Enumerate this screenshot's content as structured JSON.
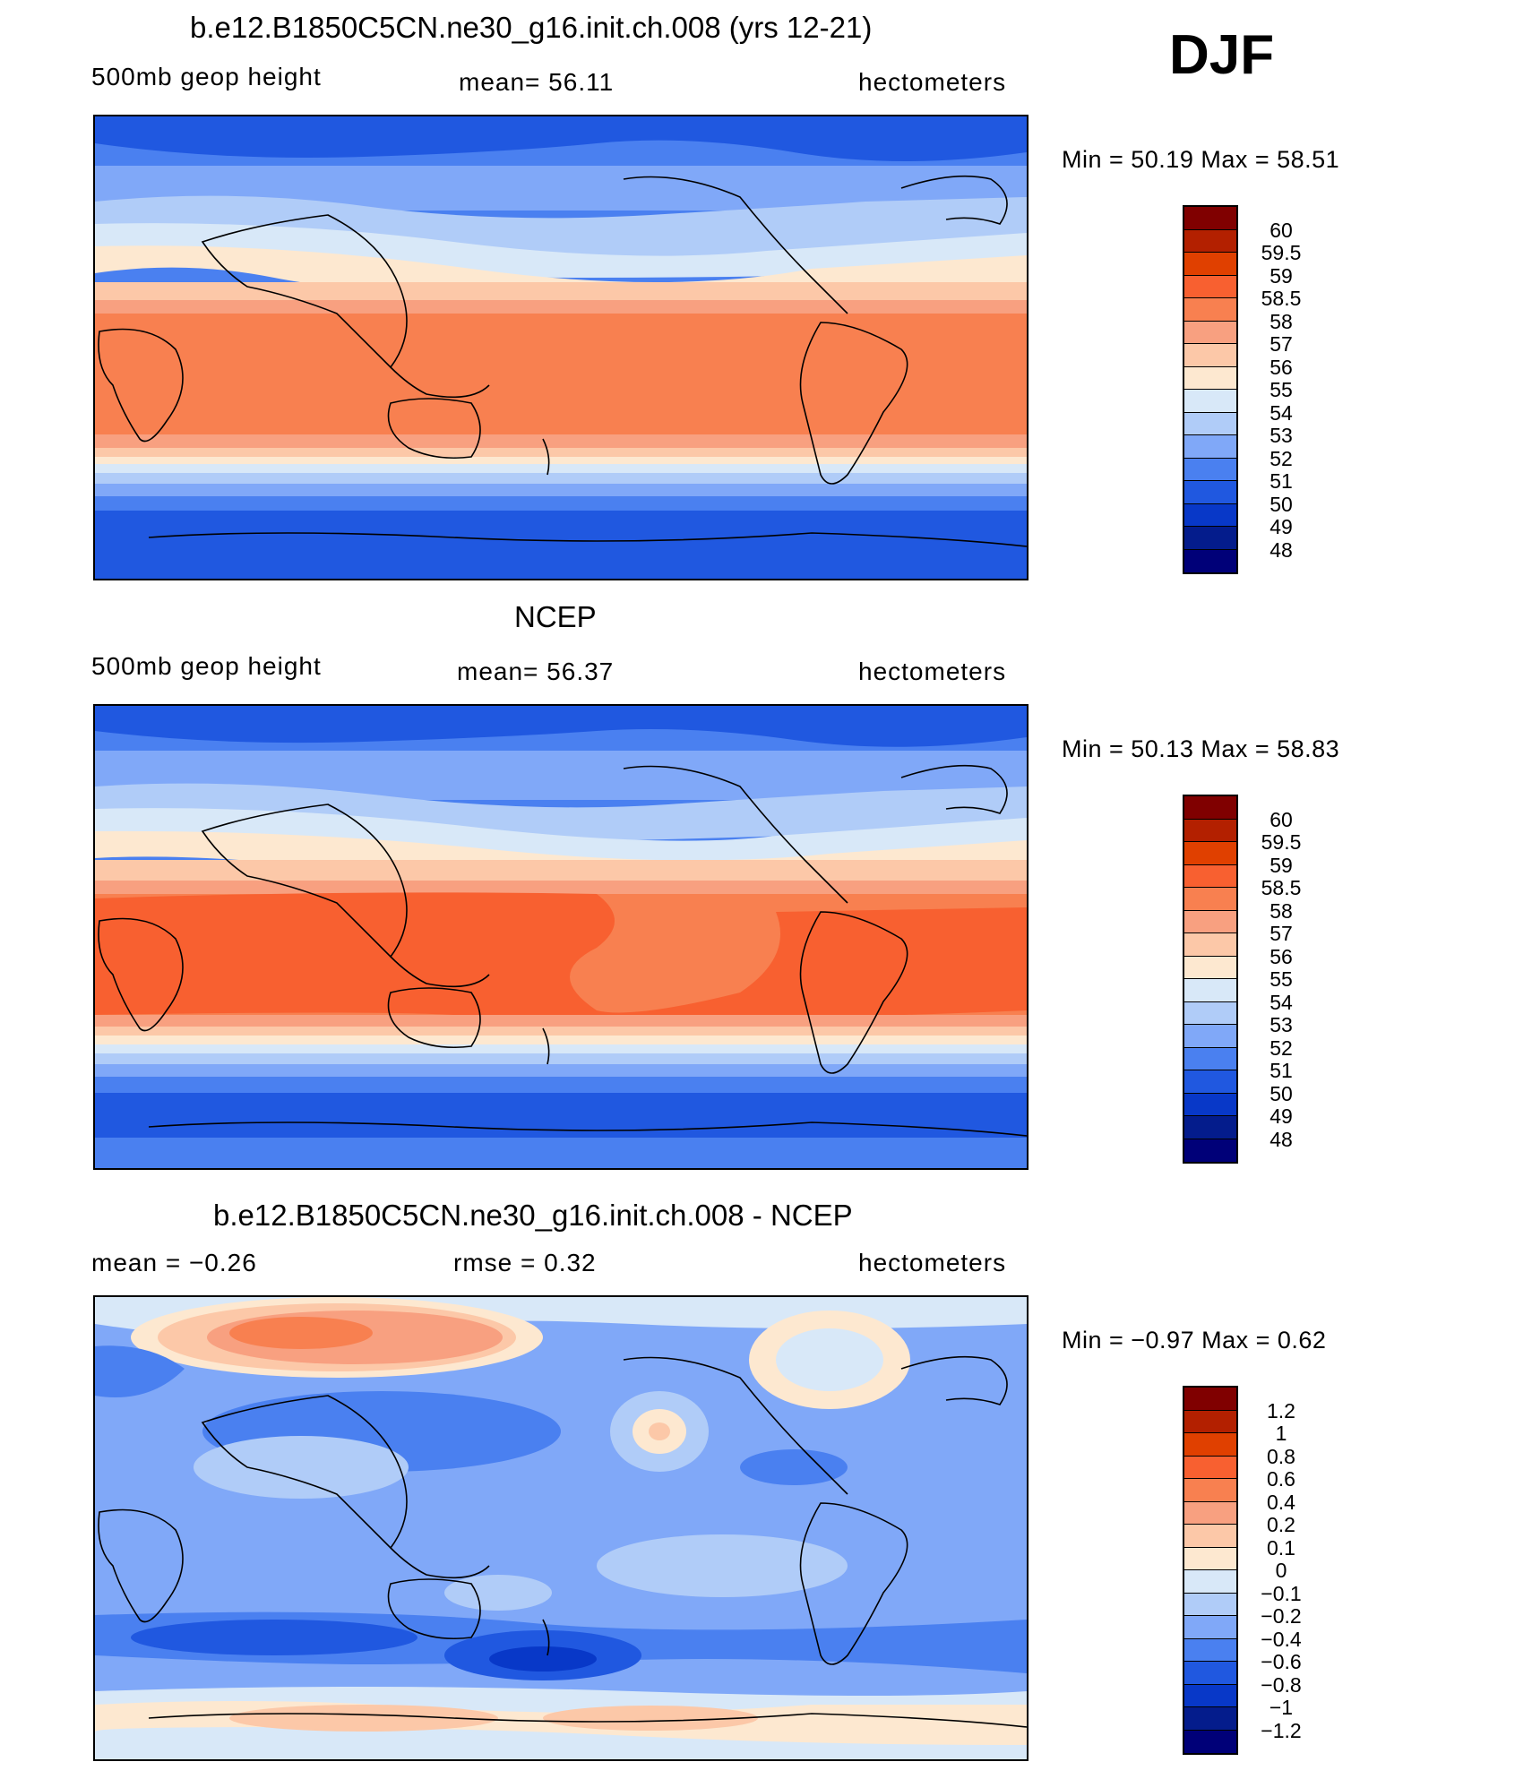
{
  "season": "DJF",
  "panels": [
    {
      "id": "model",
      "title": "b.e12.B1850C5CN.ne30_g16.init.ch.008 (yrs 12-21)",
      "left_label": "500mb geop height",
      "center_label": "mean=   56.11",
      "right_label": "hectometers",
      "minmax": "Min  =    50.19  Max  =     58.51",
      "colorbar": {
        "labels": [
          "60",
          "59.5",
          "59",
          "58.5",
          "58",
          "57",
          "56",
          "55",
          "54",
          "53",
          "52",
          "51",
          "50",
          "49",
          "48"
        ],
        "colors": [
          "#800000",
          "#b32000",
          "#e04000",
          "#f86030",
          "#f88050",
          "#f8a080",
          "#fcc8a8",
          "#fde8d0",
          "#d8e8f8",
          "#b0ccf8",
          "#80a8f8",
          "#4a80f0",
          "#2058e0",
          "#0838c8",
          "#041c8c",
          "#000078"
        ]
      }
    },
    {
      "id": "obs",
      "title": "NCEP",
      "left_label": "500mb geop height",
      "center_label": "mean=   56.37",
      "right_label": "hectometers",
      "minmax": "Min  =    50.13  Max  =     58.83",
      "colorbar": {
        "labels": [
          "60",
          "59.5",
          "59",
          "58.5",
          "58",
          "57",
          "56",
          "55",
          "54",
          "53",
          "52",
          "51",
          "50",
          "49",
          "48"
        ],
        "colors": [
          "#800000",
          "#b32000",
          "#e04000",
          "#f86030",
          "#f88050",
          "#f8a080",
          "#fcc8a8",
          "#fde8d0",
          "#d8e8f8",
          "#b0ccf8",
          "#80a8f8",
          "#4a80f0",
          "#2058e0",
          "#0838c8",
          "#041c8c",
          "#000078"
        ]
      }
    },
    {
      "id": "diff",
      "title": "b.e12.B1850C5CN.ne30_g16.init.ch.008 - NCEP",
      "left_label": "mean  =    −0.26",
      "center_label": "rmse  =     0.32",
      "right_label": "hectometers",
      "minmax": "Min  =   −0.97  Max  =      0.62",
      "colorbar": {
        "labels": [
          "1.2",
          "1",
          "0.8",
          "0.6",
          "0.4",
          "0.2",
          "0.1",
          "0",
          "−0.1",
          "−0.2",
          "−0.4",
          "−0.6",
          "−0.8",
          "−1",
          "−1.2"
        ],
        "colors": [
          "#800000",
          "#b32000",
          "#e04000",
          "#f86030",
          "#f88050",
          "#f8a080",
          "#fcc8a8",
          "#fde8d0",
          "#d8e8f8",
          "#b0ccf8",
          "#80a8f8",
          "#4a80f0",
          "#2058e0",
          "#0838c8",
          "#041c8c",
          "#000078"
        ]
      }
    }
  ]
}
